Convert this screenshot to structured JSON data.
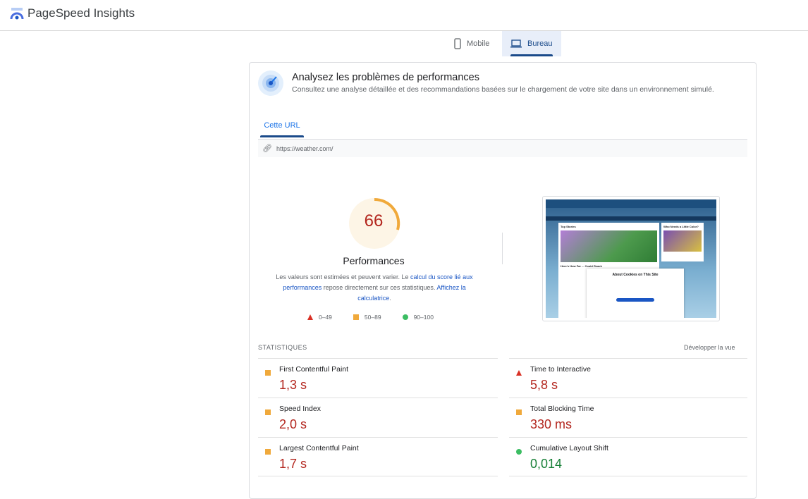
{
  "app": {
    "title": "PageSpeed Insights"
  },
  "device_tabs": [
    {
      "label": "Mobile",
      "icon": "phone-icon",
      "selected": false
    },
    {
      "label": "Bureau",
      "icon": "laptop-icon",
      "selected": true
    }
  ],
  "section": {
    "title": "Analysez les problèmes de performances",
    "subtitle": "Consultez une analyse détaillée et des recommandations basées sur le chargement de votre site dans un environnement simulé.",
    "tab": "Cette URL",
    "url": "https://weather.com/"
  },
  "score": {
    "value": "66",
    "label": "Performances",
    "status_color": "#f0a93b",
    "desc_1": "Les valeurs sont estimées et peuvent varier. Le ",
    "link_1": "calcul du score lié aux performances",
    "desc_2": " repose directement sur ces statistiques. ",
    "link_2": "Affichez la calculatrice",
    "desc_3": "."
  },
  "legend": [
    {
      "range": "0–49",
      "color": "#d93025"
    },
    {
      "range": "50–89",
      "color": "#f0a93b"
    },
    {
      "range": "90–100",
      "color": "#3cbd63"
    }
  ],
  "screenshot": {
    "heading_left": "Top Stories",
    "heading_right": "Who Needs a Little Color?",
    "story": "Here's How Far ... Could Reach",
    "dialog": "About Cookies on This Site"
  },
  "stats": {
    "heading": "STATISTIQUES",
    "expand": "Développer la vue",
    "left": [
      {
        "label": "First Contentful Paint",
        "value": "1,3 s",
        "rating": "average"
      },
      {
        "label": "Speed Index",
        "value": "2,0 s",
        "rating": "average"
      },
      {
        "label": "Largest Contentful Paint",
        "value": "1,7 s",
        "rating": "average"
      }
    ],
    "right": [
      {
        "label": "Time to Interactive",
        "value": "5,8 s",
        "rating": "fail"
      },
      {
        "label": "Total Blocking Time",
        "value": "330 ms",
        "rating": "average"
      },
      {
        "label": "Cumulative Layout Shift",
        "value": "0,014",
        "rating": "pass"
      }
    ]
  }
}
